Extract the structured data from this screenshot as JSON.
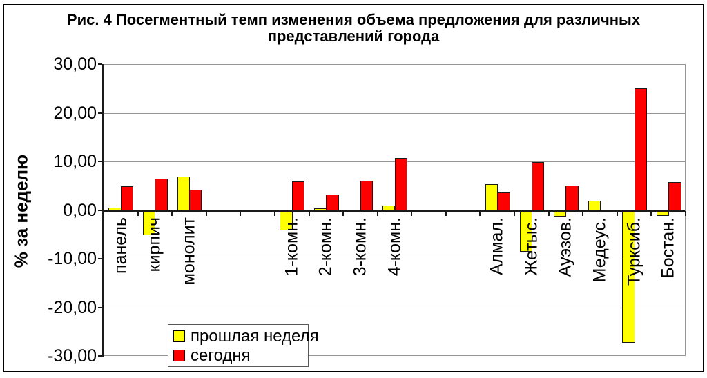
{
  "chart_data": {
    "type": "bar",
    "title": "Рис. 4 Посегментный темп изменения объема предложения для различных представлений города",
    "title_lines": [
      "Рис. 4 Посегментный темп изменения объема предложения для различных",
      "представлений города"
    ],
    "ylabel": "% за неделю",
    "xlabel": "",
    "ylim": [
      -30,
      30
    ],
    "grid": "horizontal",
    "legend_position": "bottom-left",
    "yticks": [
      {
        "value": 30,
        "label": "30,00"
      },
      {
        "value": 20,
        "label": "20,00"
      },
      {
        "value": 10,
        "label": "10,00"
      },
      {
        "value": 0,
        "label": "0,00"
      },
      {
        "value": -10,
        "label": "-10,00"
      },
      {
        "value": -20,
        "label": "-20,00"
      },
      {
        "value": -30,
        "label": "-30,00"
      }
    ],
    "num_slots": 17,
    "series": [
      {
        "name": "прошлая неделя",
        "color": "#FFFF00"
      },
      {
        "name": "сегодня",
        "color": "#FF0000"
      }
    ],
    "bar_border_color": "#000000",
    "categories": [
      {
        "label": "панель",
        "slot": 0,
        "values": [
          0.7,
          5.1
        ]
      },
      {
        "label": "кирпич",
        "slot": 1,
        "values": [
          -5.0,
          6.6
        ]
      },
      {
        "label": "монолит",
        "slot": 2,
        "values": [
          7.0,
          4.3
        ]
      },
      {
        "label": "1-комн.",
        "slot": 5,
        "values": [
          -4.0,
          6.0
        ]
      },
      {
        "label": "2-комн.",
        "slot": 6,
        "values": [
          0.5,
          3.4
        ]
      },
      {
        "label": "3-комн.",
        "slot": 7,
        "values": [
          0.0,
          6.2
        ]
      },
      {
        "label": "4-комн.",
        "slot": 8,
        "values": [
          1.0,
          10.8
        ]
      },
      {
        "label": "Алмал.",
        "slot": 11,
        "values": [
          5.5,
          3.8
        ]
      },
      {
        "label": "Жетыс.",
        "slot": 12,
        "values": [
          -8.5,
          10.0
        ]
      },
      {
        "label": "Ауэзов.",
        "slot": 13,
        "values": [
          -1.2,
          5.2
        ]
      },
      {
        "label": "Медеус.",
        "slot": 14,
        "values": [
          2.0,
          0.0
        ]
      },
      {
        "label": "Турксиб.",
        "slot": 15,
        "values": [
          -27.2,
          25.2
        ]
      },
      {
        "label": "Бостан.",
        "slot": 16,
        "values": [
          -1.0,
          5.9
        ]
      }
    ]
  }
}
